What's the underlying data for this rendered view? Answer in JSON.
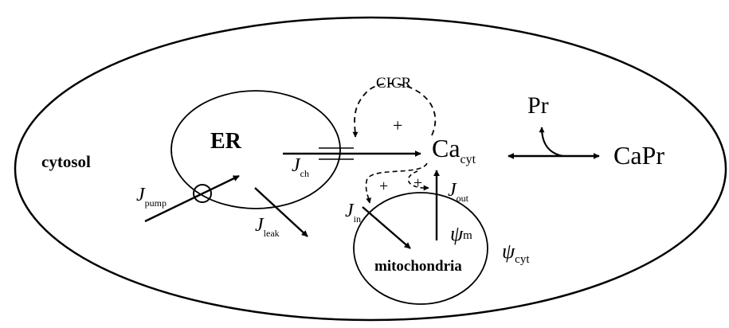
{
  "diagram": {
    "region_labels": {
      "cytosol": "cytosol",
      "er": "ER",
      "mitochondria": "mitochondria"
    },
    "cicr": {
      "label": "CICR",
      "sign": "+"
    },
    "species": {
      "ca_base": "Ca",
      "ca_sub": "cyt",
      "pr": "Pr",
      "capr": "CaPr"
    },
    "potentials": {
      "psi_m": {
        "symbol": "ψ",
        "sub": "m"
      },
      "psi_cyt": {
        "symbol": "ψ",
        "sub": "cyt"
      }
    },
    "fluxes": {
      "j_ch": {
        "symbol": "J",
        "sub": "ch"
      },
      "j_pump": {
        "symbol": "J",
        "sub": "pump"
      },
      "j_leak": {
        "symbol": "J",
        "sub": "leak"
      },
      "j_in": {
        "symbol": "J",
        "sub": "in"
      },
      "j_out": {
        "symbol": "J",
        "sub": "out"
      }
    },
    "feedback_signs": {
      "left": "+",
      "right": "+"
    }
  }
}
